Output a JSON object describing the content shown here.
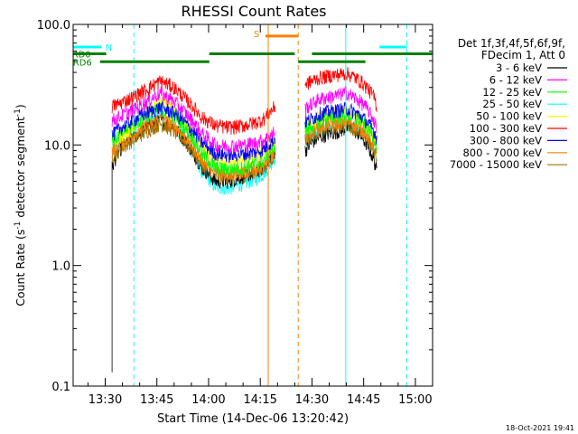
{
  "chart_data": {
    "type": "line",
    "title": "RHESSI Count Rates",
    "xlabel": "Start Time (14-Dec-06 13:20:42)",
    "ylabel_main": "Count Rate (s",
    "ylabel_sup1": "-1",
    "ylabel_mid": " detector segment",
    "ylabel_sup2": "-1",
    "ylabel_end": ")",
    "yscale": "log",
    "ylim": [
      0.1,
      100.0
    ],
    "yticks": [
      {
        "value": 0.1,
        "label": "0.1"
      },
      {
        "value": 1.0,
        "label": "1.0"
      },
      {
        "value": 10.0,
        "label": "10.0"
      },
      {
        "value": 100.0,
        "label": "100.0"
      }
    ],
    "xlim_minutes": [
      800.7,
      905.0
    ],
    "xticks": [
      {
        "value": 810,
        "label": "13:30"
      },
      {
        "value": 825,
        "label": "13:45"
      },
      {
        "value": 840,
        "label": "14:00"
      },
      {
        "value": 855,
        "label": "14:15"
      },
      {
        "value": 870,
        "label": "14:30"
      },
      {
        "value": 885,
        "label": "14:45"
      },
      {
        "value": 900,
        "label": "15:00"
      }
    ],
    "legend": {
      "position": "right",
      "header": [
        "Det 1f,3f,4f,5f,6f,9f,",
        "FDecim 1, Att 0"
      ],
      "entries": [
        {
          "label": "3 - 6 keV",
          "color": "#000000"
        },
        {
          "label": "6 - 12 keV",
          "color": "#ff00ff"
        },
        {
          "label": "12 - 25 keV",
          "color": "#00ff00"
        },
        {
          "label": "25 - 50 keV",
          "color": "#00ffff"
        },
        {
          "label": "50 - 100 keV",
          "color": "#ffff00"
        },
        {
          "label": "100 - 300 keV",
          "color": "#ff0000"
        },
        {
          "label": "300 - 800 keV",
          "color": "#0000ff"
        },
        {
          "label": "800 - 7000 keV",
          "color": "#ff8000"
        },
        {
          "label": "7000 - 15000 keV",
          "color": "#a07000"
        }
      ]
    },
    "flags": [
      {
        "label": "N",
        "color": "#00ffff",
        "segments": [
          [
            800.7,
            809.0
          ],
          [
            889.6,
            897.5
          ]
        ],
        "level": 65
      },
      {
        "label": "RD0",
        "color": "#008000",
        "segments": [
          [
            800.7,
            810.3
          ],
          [
            840.2,
            865.0
          ],
          [
            870.0,
            905.0
          ]
        ],
        "level": 57
      },
      {
        "label": "RD6",
        "color": "#008000",
        "segments": [
          [
            808.5,
            840.2
          ],
          [
            866.0,
            885.5
          ]
        ],
        "level": 49
      },
      {
        "label": "S",
        "color": "#ff8000",
        "segments": [
          [
            856.5,
            866.0
          ]
        ],
        "level": 80
      }
    ],
    "vlines": [
      {
        "x": 800.7,
        "color": "#00ffff",
        "style": "solid"
      },
      {
        "x": 818.3,
        "color": "#00ffff",
        "style": "dashed"
      },
      {
        "x": 857.3,
        "color": "#ff8000",
        "style": "solid"
      },
      {
        "x": 866.0,
        "color": "#ff8000",
        "style": "dashed"
      },
      {
        "x": 879.8,
        "color": "#00ffff",
        "style": "solid"
      },
      {
        "x": 897.5,
        "color": "#00ffff",
        "style": "dashed"
      }
    ],
    "intervals": [
      {
        "start": 812.0,
        "end": 859.3,
        "start_drop": 0.13
      },
      {
        "start": 868.0,
        "end": 888.8,
        "start_drop": null
      }
    ],
    "series": [
      {
        "name": "3 - 6 keV",
        "color": "#000000",
        "x": [
          812.0,
          814,
          818,
          822,
          826,
          830,
          834,
          838,
          842,
          846,
          850,
          854,
          856,
          858,
          859.3,
          868.0,
          870,
          872,
          875,
          878,
          880,
          882,
          884,
          886,
          888,
          888.8
        ],
        "y": [
          6.5,
          9.0,
          11.5,
          14.0,
          16.0,
          14.0,
          10.0,
          6.5,
          5.0,
          5.0,
          5.5,
          6.0,
          6.5,
          8.0,
          9.0,
          9.0,
          10.5,
          11.5,
          12.5,
          13.0,
          14.0,
          13.5,
          12.0,
          10.0,
          7.5,
          6.0
        ]
      },
      {
        "name": "6 - 12 keV",
        "color": "#ff00ff",
        "x": [
          812.0,
          814,
          818,
          822,
          826,
          830,
          834,
          838,
          842,
          846,
          850,
          854,
          856,
          858,
          859.3,
          868.0,
          870,
          872,
          875,
          878,
          880,
          882,
          884,
          886,
          888,
          888.8
        ],
        "y": [
          16.0,
          17.0,
          19.5,
          23.0,
          27.0,
          23.0,
          17.5,
          12.5,
          10.0,
          9.8,
          10.0,
          10.5,
          11.0,
          12.0,
          13.0,
          20.0,
          22.0,
          24.0,
          25.0,
          26.0,
          27.5,
          25.0,
          23.0,
          20.0,
          16.0,
          14.0
        ]
      },
      {
        "name": "12 - 25 keV",
        "color": "#00ff00",
        "x": [
          812.0,
          814,
          818,
          822,
          826,
          830,
          834,
          838,
          842,
          846,
          850,
          854,
          856,
          858,
          859.3,
          868.0,
          870,
          872,
          875,
          878,
          880,
          882,
          884,
          886,
          888,
          888.8
        ],
        "y": [
          11.0,
          12.0,
          14.5,
          17.5,
          20.0,
          17.5,
          13.0,
          8.5,
          6.5,
          6.3,
          6.5,
          7.0,
          7.5,
          9.0,
          10.0,
          13.0,
          14.5,
          16.0,
          17.0,
          17.5,
          18.0,
          17.0,
          16.0,
          14.0,
          11.5,
          10.0
        ]
      },
      {
        "name": "25 - 50 keV",
        "color": "#00ffff",
        "x": [
          812.0,
          814,
          818,
          822,
          826,
          830,
          834,
          838,
          842,
          846,
          850,
          854,
          856,
          858,
          859.3,
          868.0,
          870,
          872,
          875,
          878,
          880,
          882,
          884,
          886,
          888,
          888.8
        ],
        "y": [
          8.5,
          9.5,
          12.0,
          15.0,
          17.0,
          14.5,
          10.0,
          6.0,
          4.5,
          4.4,
          4.8,
          5.3,
          5.8,
          7.0,
          8.0,
          11.0,
          12.0,
          13.0,
          14.0,
          14.5,
          15.0,
          14.0,
          13.0,
          11.0,
          9.0,
          8.0
        ]
      },
      {
        "name": "50 - 100 keV",
        "color": "#ffff00",
        "x": [
          812.0,
          814,
          818,
          822,
          826,
          830,
          834,
          838,
          842,
          846,
          850,
          854,
          856,
          858,
          859.3,
          868.0,
          870,
          872,
          875,
          878,
          880,
          882,
          884,
          886,
          888,
          888.8
        ],
        "y": [
          10.0,
          11.5,
          14.0,
          17.5,
          23.0,
          19.0,
          14.0,
          9.5,
          7.5,
          7.3,
          7.5,
          8.0,
          8.5,
          9.5,
          10.5,
          14.0,
          15.5,
          17.0,
          18.0,
          18.5,
          19.0,
          18.0,
          16.5,
          14.5,
          12.0,
          10.5
        ]
      },
      {
        "name": "100 - 300 keV",
        "color": "#ff0000",
        "x": [
          812.0,
          814,
          818,
          822,
          826,
          830,
          834,
          838,
          842,
          846,
          850,
          854,
          856,
          858,
          859.3,
          868.0,
          870,
          872,
          875,
          878,
          880,
          882,
          884,
          886,
          888,
          888.8
        ],
        "y": [
          21.0,
          22.0,
          25.0,
          29.0,
          34.0,
          30.0,
          23.0,
          17.0,
          14.5,
          14.0,
          14.5,
          15.5,
          16.5,
          19.0,
          21.0,
          32.0,
          34.0,
          36.0,
          37.5,
          38.5,
          39.5,
          37.0,
          34.0,
          30.0,
          25.0,
          21.0
        ]
      },
      {
        "name": "300 - 800 keV",
        "color": "#0000ff",
        "x": [
          812.0,
          814,
          818,
          822,
          826,
          830,
          834,
          838,
          842,
          846,
          850,
          854,
          856,
          858,
          859.3,
          868.0,
          870,
          872,
          875,
          878,
          880,
          882,
          884,
          886,
          888,
          888.8
        ],
        "y": [
          12.0,
          13.5,
          16.0,
          18.5,
          20.5,
          18.5,
          14.5,
          10.5,
          8.5,
          8.2,
          8.4,
          8.8,
          9.3,
          10.5,
          11.5,
          15.5,
          16.5,
          18.0,
          19.0,
          19.5,
          20.0,
          19.0,
          17.5,
          15.5,
          13.0,
          11.5
        ]
      },
      {
        "name": "800 - 7000 keV",
        "color": "#ff8000",
        "x": [
          812.0,
          814,
          818,
          822,
          826,
          830,
          834,
          838,
          842,
          846,
          850,
          854,
          856,
          858,
          859.3,
          868.0,
          870,
          872,
          875,
          878,
          880,
          882,
          884,
          886,
          888,
          888.8
        ],
        "y": [
          9.0,
          10.0,
          12.0,
          14.5,
          16.5,
          14.5,
          11.0,
          7.5,
          6.0,
          5.8,
          6.0,
          6.4,
          6.8,
          8.0,
          9.0,
          12.0,
          13.0,
          14.0,
          15.0,
          15.5,
          16.0,
          15.0,
          14.0,
          12.0,
          10.0,
          9.0
        ]
      },
      {
        "name": "7000 - 15000 keV",
        "color": "#a07000",
        "x": [
          812.0,
          814,
          818,
          822,
          826,
          830,
          834,
          838,
          842,
          846,
          850,
          854,
          856,
          858,
          859.3,
          868.0,
          870,
          872,
          875,
          878,
          880,
          882,
          884,
          886,
          888,
          888.8
        ],
        "y": [
          8.0,
          9.0,
          11.0,
          13.0,
          15.0,
          13.0,
          10.0,
          7.0,
          5.6,
          5.4,
          5.6,
          6.0,
          6.4,
          7.5,
          8.5,
          11.0,
          12.0,
          13.0,
          14.0,
          14.5,
          15.0,
          14.0,
          13.0,
          11.0,
          9.0,
          8.0
        ]
      }
    ]
  },
  "footer_timestamp": "18-Oct-2021 19:41"
}
